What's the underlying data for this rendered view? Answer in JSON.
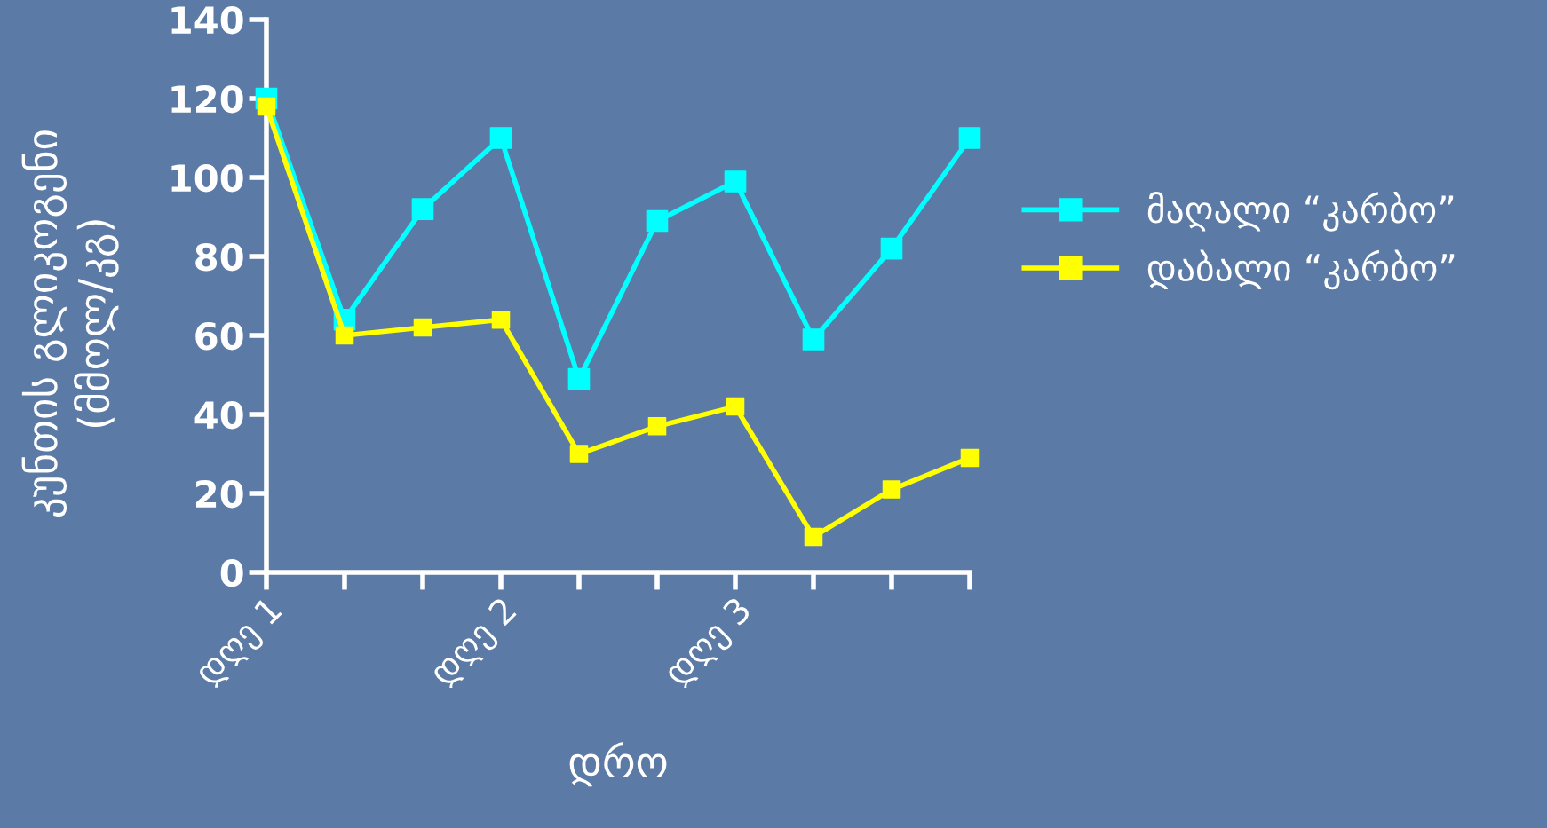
{
  "chart_data": {
    "type": "line",
    "xlabel": "დრო",
    "ylabel": "კუნთის გლიკოგენი\n(მმოლ/კგ)",
    "categories": [
      "დღე 1",
      null,
      null,
      "დღე 2",
      null,
      null,
      "დღე 3",
      null,
      null,
      null
    ],
    "series": [
      {
        "name": "მაღალი “კარბო”",
        "color": "#00ffff",
        "values": [
          120,
          64,
          92,
          110,
          49,
          89,
          99,
          59,
          82,
          110
        ]
      },
      {
        "name": "დაბალი “კარბო”",
        "color": "#ffff00",
        "values": [
          118,
          60,
          62,
          64,
          30,
          37,
          42,
          9,
          21,
          29
        ]
      }
    ],
    "ylim": [
      0,
      140
    ],
    "yticks": [
      0,
      20,
      40,
      60,
      80,
      100,
      120,
      140
    ],
    "grid": false,
    "legend": "right",
    "marker": "square",
    "line_style": "solid"
  }
}
